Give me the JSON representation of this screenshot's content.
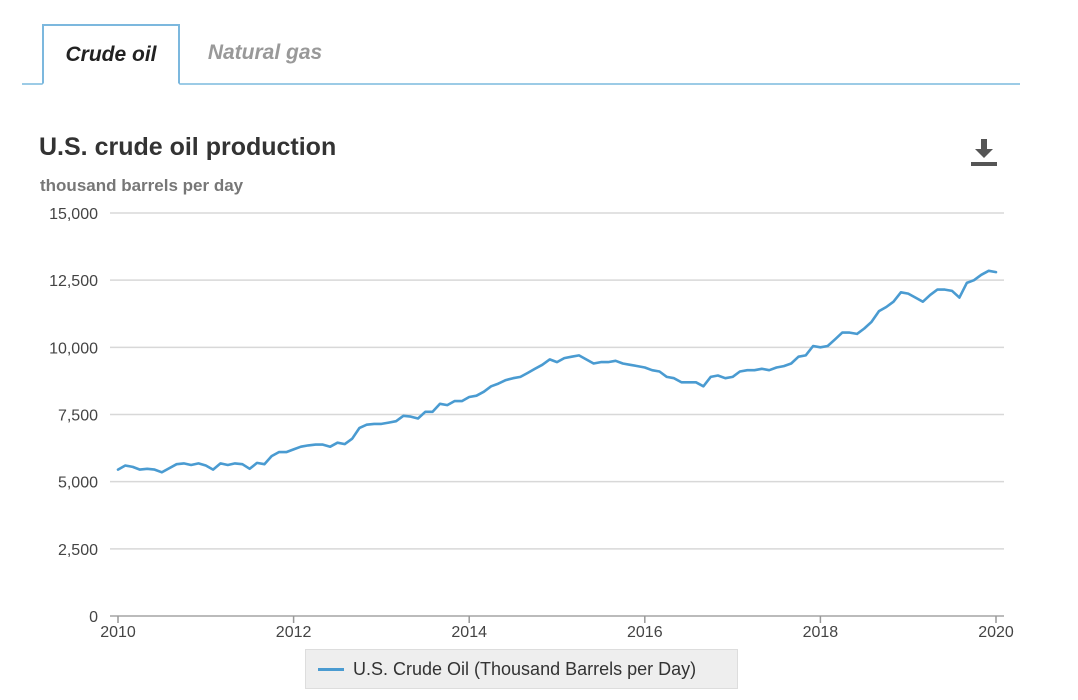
{
  "tabs": [
    {
      "label": "Crude oil",
      "active": true
    },
    {
      "label": "Natural gas",
      "active": false
    }
  ],
  "download_icon": "download-icon",
  "colors": {
    "series": "#4a9bd1",
    "tab_border": "#7cb8de",
    "grid": "#d8d8d8"
  },
  "chart_data": {
    "type": "line",
    "title": "U.S. crude oil production",
    "subtitle": "thousand barrels per day",
    "xlabel": "",
    "ylabel": "thousand barrels per day",
    "xlim": [
      2010,
      2020
    ],
    "ylim": [
      0,
      15000
    ],
    "x_ticks": [
      2010,
      2012,
      2014,
      2016,
      2018,
      2020
    ],
    "x_tick_labels": [
      "2010",
      "2012",
      "2014",
      "2016",
      "2018",
      "2020"
    ],
    "y_ticks": [
      0,
      2500,
      5000,
      7500,
      10000,
      12500,
      15000
    ],
    "y_tick_labels": [
      "0",
      "2,500",
      "5,000",
      "7,500",
      "10,000",
      "12,500",
      "15,000"
    ],
    "grid": true,
    "legend": "bottom-center",
    "series": [
      {
        "name": "U.S. Crude Oil (Thousand Barrels per Day)",
        "x": [
          2010.0,
          2010.083,
          2010.167,
          2010.25,
          2010.333,
          2010.417,
          2010.5,
          2010.583,
          2010.667,
          2010.75,
          2010.833,
          2010.917,
          2011.0,
          2011.083,
          2011.167,
          2011.25,
          2011.333,
          2011.417,
          2011.5,
          2011.583,
          2011.667,
          2011.75,
          2011.833,
          2011.917,
          2012.0,
          2012.083,
          2012.167,
          2012.25,
          2012.333,
          2012.417,
          2012.5,
          2012.583,
          2012.667,
          2012.75,
          2012.833,
          2012.917,
          2013.0,
          2013.083,
          2013.167,
          2013.25,
          2013.333,
          2013.417,
          2013.5,
          2013.583,
          2013.667,
          2013.75,
          2013.833,
          2013.917,
          2014.0,
          2014.083,
          2014.167,
          2014.25,
          2014.333,
          2014.417,
          2014.5,
          2014.583,
          2014.667,
          2014.75,
          2014.833,
          2014.917,
          2015.0,
          2015.083,
          2015.167,
          2015.25,
          2015.333,
          2015.417,
          2015.5,
          2015.583,
          2015.667,
          2015.75,
          2015.833,
          2015.917,
          2016.0,
          2016.083,
          2016.167,
          2016.25,
          2016.333,
          2016.417,
          2016.5,
          2016.583,
          2016.667,
          2016.75,
          2016.833,
          2016.917,
          2017.0,
          2017.083,
          2017.167,
          2017.25,
          2017.333,
          2017.417,
          2017.5,
          2017.583,
          2017.667,
          2017.75,
          2017.833,
          2017.917,
          2018.0,
          2018.083,
          2018.167,
          2018.25,
          2018.333,
          2018.417,
          2018.5,
          2018.583,
          2018.667,
          2018.75,
          2018.833,
          2018.917,
          2019.0,
          2019.083,
          2019.167,
          2019.25,
          2019.333,
          2019.417,
          2019.5,
          2019.583,
          2019.667,
          2019.75,
          2019.833,
          2019.917,
          2020.0
        ],
        "values": [
          5450,
          5600,
          5550,
          5450,
          5480,
          5450,
          5350,
          5500,
          5650,
          5680,
          5620,
          5680,
          5600,
          5450,
          5680,
          5620,
          5680,
          5650,
          5480,
          5700,
          5650,
          5950,
          6100,
          6100,
          6200,
          6300,
          6350,
          6380,
          6380,
          6300,
          6450,
          6400,
          6600,
          7000,
          7120,
          7150,
          7150,
          7200,
          7250,
          7450,
          7420,
          7350,
          7600,
          7600,
          7900,
          7850,
          8000,
          8000,
          8150,
          8200,
          8350,
          8550,
          8650,
          8780,
          8850,
          8900,
          9050,
          9200,
          9350,
          9550,
          9450,
          9600,
          9650,
          9700,
          9550,
          9400,
          9450,
          9450,
          9500,
          9400,
          9350,
          9300,
          9250,
          9150,
          9100,
          8900,
          8850,
          8700,
          8700,
          8700,
          8550,
          8900,
          8950,
          8850,
          8900,
          9100,
          9150,
          9150,
          9200,
          9150,
          9250,
          9300,
          9400,
          9650,
          9700,
          10050,
          10000,
          10050,
          10300,
          10550,
          10550,
          10500,
          10700,
          10950,
          11350,
          11500,
          11700,
          12050,
          12000,
          11850,
          11700,
          11950,
          12150,
          12150,
          12100,
          11850,
          12400,
          12500,
          12700,
          12850,
          12800
        ]
      }
    ]
  }
}
